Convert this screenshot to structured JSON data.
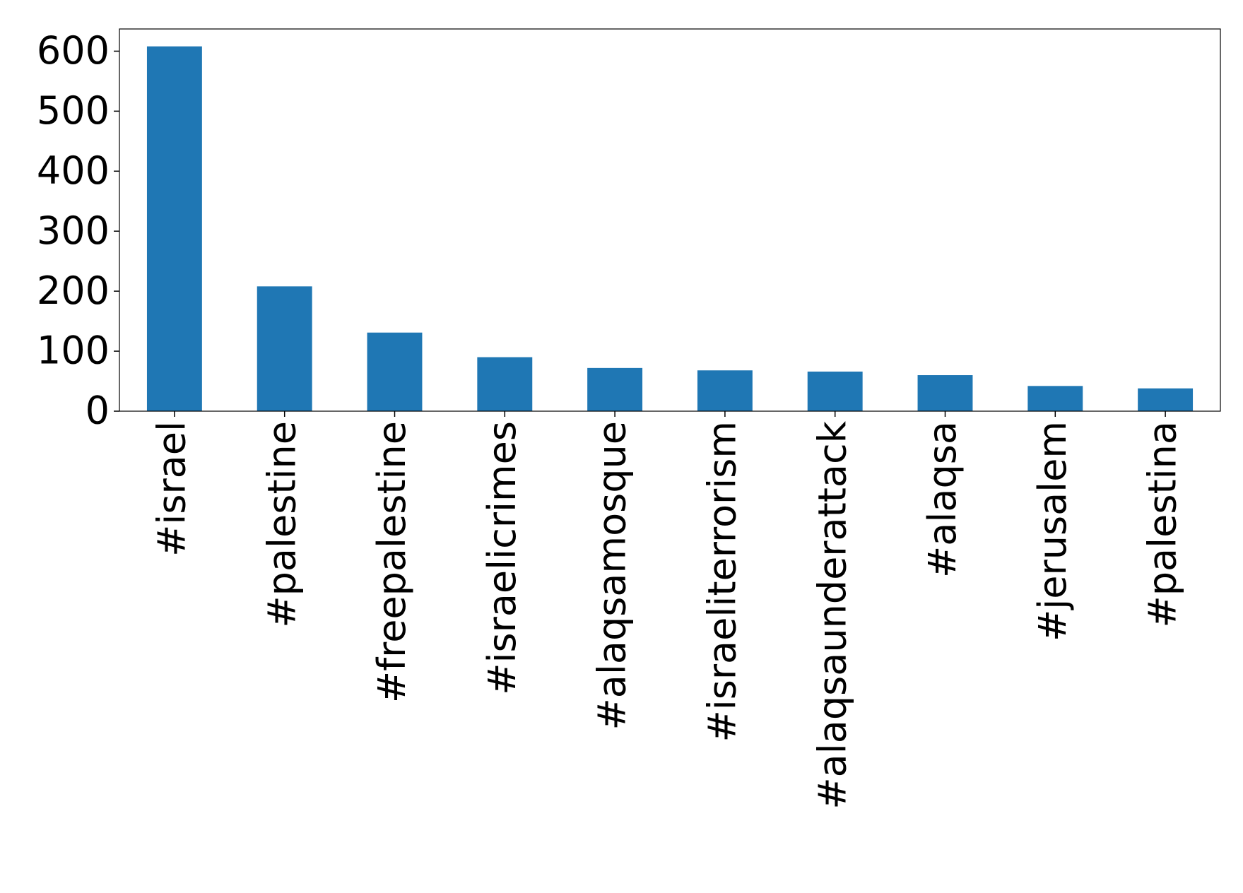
{
  "chart_data": {
    "type": "bar",
    "categories": [
      "#israel",
      "#palestine",
      "#freepalestine",
      "#israelicrimes",
      "#alaqsamosque",
      "#israeliterrorism",
      "#alaqsaunderattack",
      "#alaqsa",
      "#jerusalem",
      "#palestina"
    ],
    "values": [
      608,
      208,
      131,
      90,
      72,
      68,
      66,
      60,
      42,
      38
    ],
    "color": "#1f77b4",
    "ylim": [
      0,
      637
    ],
    "yticks": [
      0,
      100,
      200,
      300,
      400,
      500,
      600
    ],
    "grid": false
  }
}
